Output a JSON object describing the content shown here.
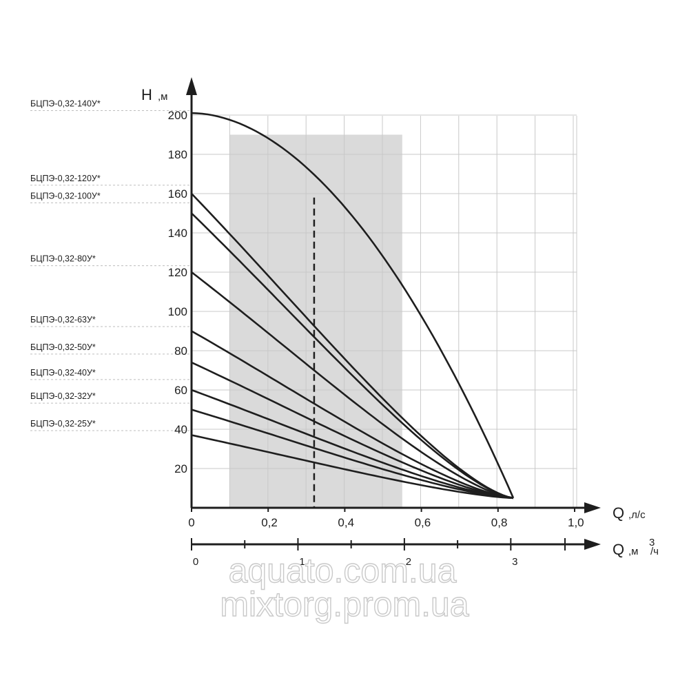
{
  "chart_data": {
    "type": "line",
    "y_axis": {
      "title": "H",
      "unit": ",м",
      "ylim": [
        0,
        210
      ],
      "ticks": [
        20,
        40,
        60,
        80,
        100,
        120,
        140,
        160,
        180,
        200
      ]
    },
    "x_axis": {
      "title": "Q",
      "unit": ",л/с",
      "xlim": [
        0,
        1.0
      ],
      "ticks": [
        0,
        0.2,
        0.4,
        0.6,
        0.8,
        1.0
      ],
      "tick_labels": [
        "0",
        "0,2",
        "0,4",
        "0,6",
        "0,8",
        "1,0"
      ]
    },
    "x2_axis": {
      "title": "Q",
      "unit": ",м",
      "superscript": "3",
      "unit_tail": "/ч",
      "ticks": [
        0,
        1,
        2,
        3
      ],
      "tick_labels": [
        "0",
        "1",
        "2",
        "3"
      ]
    },
    "grid": true,
    "shaded_range": [
      0.1,
      0.55
    ],
    "marker_line": {
      "x": 0.32,
      "style": "dashed"
    },
    "series": [
      {
        "name": "БЦПЭ-0,32-140У*",
        "shutoff_head": 201,
        "end_flow": 0.84,
        "end_head": 5,
        "label_y": 203,
        "curve": "convex"
      },
      {
        "name": "БЦПЭ-0,32-120У*",
        "shutoff_head": 160,
        "end_flow": 0.84,
        "end_head": 5,
        "label_y": 165,
        "curve": "concave"
      },
      {
        "name": "БЦПЭ-0,32-100У*",
        "shutoff_head": 150,
        "end_flow": 0.84,
        "end_head": 5,
        "label_y": 156,
        "curve": "concave"
      },
      {
        "name": "БЦПЭ-0,32-80У*",
        "shutoff_head": 120,
        "end_flow": 0.84,
        "end_head": 5,
        "label_y": 124,
        "curve": "concave"
      },
      {
        "name": "БЦПЭ-0,32-63У*",
        "shutoff_head": 90,
        "end_flow": 0.84,
        "end_head": 5,
        "label_y": 93,
        "curve": "concave"
      },
      {
        "name": "БЦПЭ-0,32-50У*",
        "shutoff_head": 74,
        "end_flow": 0.84,
        "end_head": 5,
        "label_y": 79,
        "curve": "concave"
      },
      {
        "name": "БЦПЭ-0,32-40У*",
        "shutoff_head": 60,
        "end_flow": 0.84,
        "end_head": 5,
        "label_y": 66,
        "curve": "concave"
      },
      {
        "name": "БЦПЭ-0,32-32У*",
        "shutoff_head": 50,
        "end_flow": 0.84,
        "end_head": 5,
        "label_y": 54,
        "curve": "concave"
      },
      {
        "name": "БЦПЭ-0,32-25У*",
        "shutoff_head": 37,
        "end_flow": 0.84,
        "end_head": 5,
        "label_y": 40,
        "curve": "concave"
      }
    ]
  },
  "watermark": {
    "line1": "aquato.com.ua",
    "line2": "mixtorg.prom.ua"
  }
}
